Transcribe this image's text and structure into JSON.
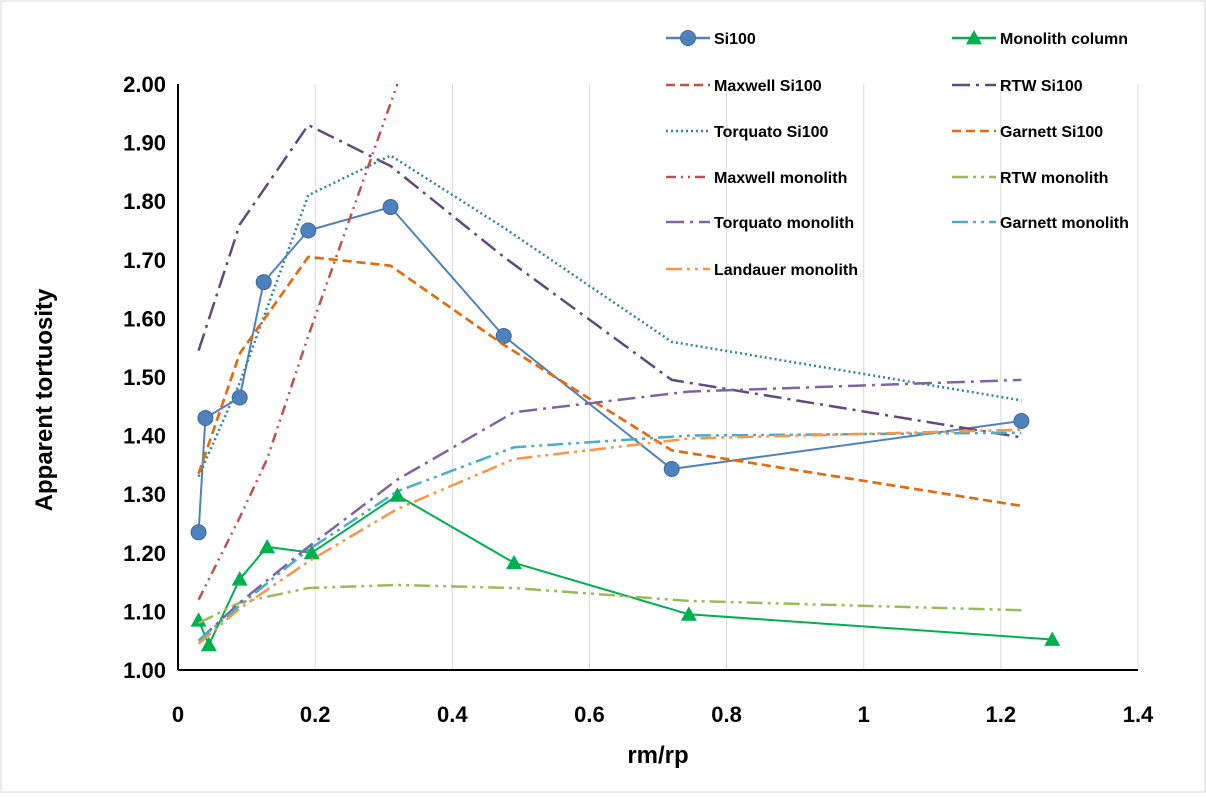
{
  "chart_data": {
    "type": "line",
    "xlabel": "rm/rp",
    "ylabel": "Apparent tortuosity",
    "xlim": [
      0,
      1.4
    ],
    "ylim": [
      1.0,
      2.0
    ],
    "x_ticks": [
      "0",
      "0.2",
      "0.4",
      "0.6",
      "0.8",
      "1",
      "1.2",
      "1.4"
    ],
    "y_ticks": [
      "1.00",
      "1.10",
      "1.20",
      "1.30",
      "1.40",
      "1.50",
      "1.60",
      "1.70",
      "1.80",
      "1.90",
      "2.00"
    ],
    "grid": "vertical",
    "legend_position": "top-right",
    "series": [
      {
        "name": "Si100",
        "color": "#4f81bd",
        "dash": "solid",
        "marker": "circle",
        "x": [
          0.03,
          0.04,
          0.09,
          0.125,
          0.19,
          0.31,
          0.475,
          0.72,
          1.23
        ],
        "y": [
          1.235,
          1.43,
          1.465,
          1.662,
          1.75,
          1.79,
          1.57,
          1.343,
          1.425
        ]
      },
      {
        "name": "Monolith column",
        "color": "#00b050",
        "dash": "solid",
        "marker": "triangle",
        "x": [
          0.03,
          0.045,
          0.09,
          0.13,
          0.195,
          0.32,
          0.49,
          0.745,
          1.275
        ],
        "y": [
          1.085,
          1.043,
          1.155,
          1.21,
          1.2,
          1.298,
          1.183,
          1.095,
          1.052
        ]
      },
      {
        "name": "Maxwell Si100",
        "color": "#c0504d",
        "dash": "dash",
        "marker": "none",
        "x": [
          0.03,
          0.09,
          0.19,
          0.31,
          0.475,
          0.72,
          1.23
        ],
        "y": [
          1.335,
          1.54,
          1.705,
          1.69,
          1.555,
          1.375,
          1.28
        ]
      },
      {
        "name": "RTW Si100",
        "color": "#604a7b",
        "dash": "longdashdot",
        "marker": "none",
        "x": [
          0.03,
          0.09,
          0.19,
          0.31,
          0.475,
          0.72,
          1.23
        ],
        "y": [
          1.545,
          1.76,
          1.93,
          1.86,
          1.705,
          1.495,
          1.397
        ]
      },
      {
        "name": "Torquato Si100",
        "color": "#31859c",
        "dash": "dot",
        "marker": "none",
        "x": [
          0.03,
          0.09,
          0.19,
          0.31,
          0.475,
          0.72,
          1.23
        ],
        "y": [
          1.33,
          1.49,
          1.81,
          1.878,
          1.755,
          1.56,
          1.46
        ]
      },
      {
        "name": "Garnett Si100",
        "color": "#e46c0a",
        "dash": "dash",
        "marker": "none",
        "x": [
          0.03,
          0.09,
          0.19,
          0.31,
          0.475,
          0.72,
          1.23
        ],
        "y": [
          1.335,
          1.54,
          1.705,
          1.69,
          1.555,
          1.375,
          1.28
        ]
      },
      {
        "name": "Maxwell monolith",
        "color": "#c0504d",
        "dash": "dashdotdot",
        "marker": "none",
        "x": [
          0.03,
          0.09,
          0.13,
          0.19,
          0.32
        ],
        "y": [
          1.12,
          1.26,
          1.36,
          1.57,
          2.0
        ]
      },
      {
        "name": "RTW monolith",
        "color": "#9bbb59",
        "dash": "longdashdotdot",
        "marker": "none",
        "x": [
          0.03,
          0.09,
          0.19,
          0.32,
          0.49,
          0.745,
          1.23
        ],
        "y": [
          1.08,
          1.115,
          1.14,
          1.145,
          1.14,
          1.118,
          1.102
        ]
      },
      {
        "name": "Torquato monolith",
        "color": "#8064a2",
        "dash": "longdashdot",
        "marker": "none",
        "x": [
          0.03,
          0.09,
          0.19,
          0.32,
          0.49,
          0.745,
          1.23
        ],
        "y": [
          1.05,
          1.115,
          1.21,
          1.325,
          1.44,
          1.475,
          1.495
        ]
      },
      {
        "name": "Garnett monolith",
        "color": "#4bacc6",
        "dash": "longdashdotdot",
        "marker": "none",
        "x": [
          0.03,
          0.09,
          0.19,
          0.32,
          0.49,
          0.745,
          1.23
        ],
        "y": [
          1.05,
          1.11,
          1.205,
          1.305,
          1.38,
          1.4,
          1.405
        ]
      },
      {
        "name": "Landauer monolith",
        "color": "#f79646",
        "dash": "longdashdotdot",
        "marker": "none",
        "x": [
          0.03,
          0.09,
          0.19,
          0.32,
          0.49,
          0.745,
          1.23
        ],
        "y": [
          1.045,
          1.105,
          1.185,
          1.275,
          1.36,
          1.395,
          1.41
        ]
      }
    ]
  }
}
